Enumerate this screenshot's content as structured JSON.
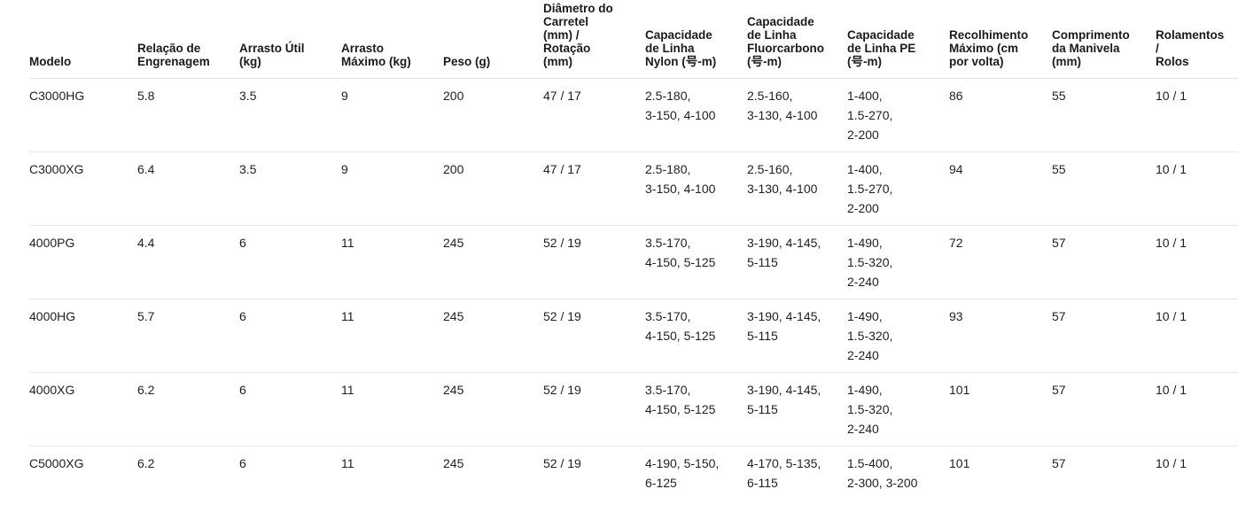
{
  "spec_table": {
    "columns": [
      "Modelo",
      "Relação de\nEngrenagem",
      "Arrasto Útil\n(kg)",
      "Arrasto\nMáximo (kg)",
      "Peso (g)",
      "Diâmetro do\nCarretel\n(mm) /\nRotação\n(mm)",
      "Capacidade\nde Linha\nNylon (号-m)",
      "Capacidade\nde Linha\nFluorcarbono\n(号-m)",
      "Capacidade\nde Linha PE\n(号-m)",
      "Recolhimento\nMáximo (cm\npor volta)",
      "Comprimento\nda Manivela\n(mm)",
      "Rolamentos /\nRolos"
    ],
    "rows": [
      [
        "C3000HG",
        "5.8",
        "3.5",
        "9",
        "200",
        "47 / 17",
        "2.5-180,\n3-150, 4-100",
        "2.5-160,\n3-130, 4-100",
        "1-400,\n1.5-270,\n2-200",
        "86",
        "55",
        "10 / 1"
      ],
      [
        "C3000XG",
        "6.4",
        "3.5",
        "9",
        "200",
        "47 / 17",
        "2.5-180,\n3-150, 4-100",
        "2.5-160,\n3-130, 4-100",
        "1-400,\n1.5-270,\n2-200",
        "94",
        "55",
        "10 / 1"
      ],
      [
        "4000PG",
        "4.4",
        "6",
        "11",
        "245",
        "52 / 19",
        "3.5-170,\n4-150, 5-125",
        "3-190, 4-145,\n5-115",
        "1-490,\n1.5-320,\n2-240",
        "72",
        "57",
        "10 / 1"
      ],
      [
        "4000HG",
        "5.7",
        "6",
        "11",
        "245",
        "52 / 19",
        "3.5-170,\n4-150, 5-125",
        "3-190, 4-145,\n5-115",
        "1-490,\n1.5-320,\n2-240",
        "93",
        "57",
        "10 / 1"
      ],
      [
        "4000XG",
        "6.2",
        "6",
        "11",
        "245",
        "52 / 19",
        "3.5-170,\n4-150, 5-125",
        "3-190, 4-145,\n5-115",
        "1-490,\n1.5-320,\n2-240",
        "101",
        "57",
        "10 / 1"
      ],
      [
        "C5000XG",
        "6.2",
        "6",
        "11",
        "245",
        "52 / 19",
        "4-190, 5-150,\n6-125",
        "4-170, 5-135,\n6-115",
        "1.5-400,\n2-300, 3-200",
        "101",
        "57",
        "10 / 1"
      ]
    ],
    "colors": {
      "text": "#1a1a1a",
      "header_border": "#e2e2e2",
      "row_border": "#e8e8e8",
      "background": "#ffffff"
    }
  }
}
